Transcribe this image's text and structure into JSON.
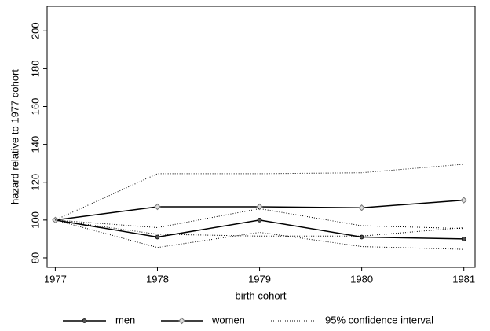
{
  "chart_data": {
    "type": "line",
    "x": [
      1977,
      1978,
      1979,
      1980,
      1981
    ],
    "xlim": [
      1976.92,
      1981.11
    ],
    "xticks": [
      1977,
      1978,
      1979,
      1980,
      1981
    ],
    "ylim": [
      75,
      213
    ],
    "yticks": [
      80,
      100,
      120,
      140,
      160,
      180,
      200
    ],
    "y_label": "hazard relative to 1977 cohort",
    "x_label": "birth cohort",
    "series": [
      {
        "name": "men",
        "color": "#000000",
        "marker": "circle",
        "values": [
          100,
          91,
          100,
          91,
          90
        ]
      },
      {
        "name": "women",
        "color": "#000000",
        "marker": "diamond",
        "values": [
          100,
          107,
          107,
          106.5,
          110.5
        ]
      },
      {
        "name": "95% confidence interval",
        "color": "#000000",
        "lines": [
          [
            100,
            124.5,
            124.5,
            125,
            129.5
          ],
          [
            100,
            92.5,
            91.5,
            91.5,
            96
          ],
          [
            100,
            96,
            106,
            97,
            95.5
          ],
          [
            100,
            85.5,
            93.5,
            86,
            84.5
          ]
        ]
      }
    ]
  }
}
